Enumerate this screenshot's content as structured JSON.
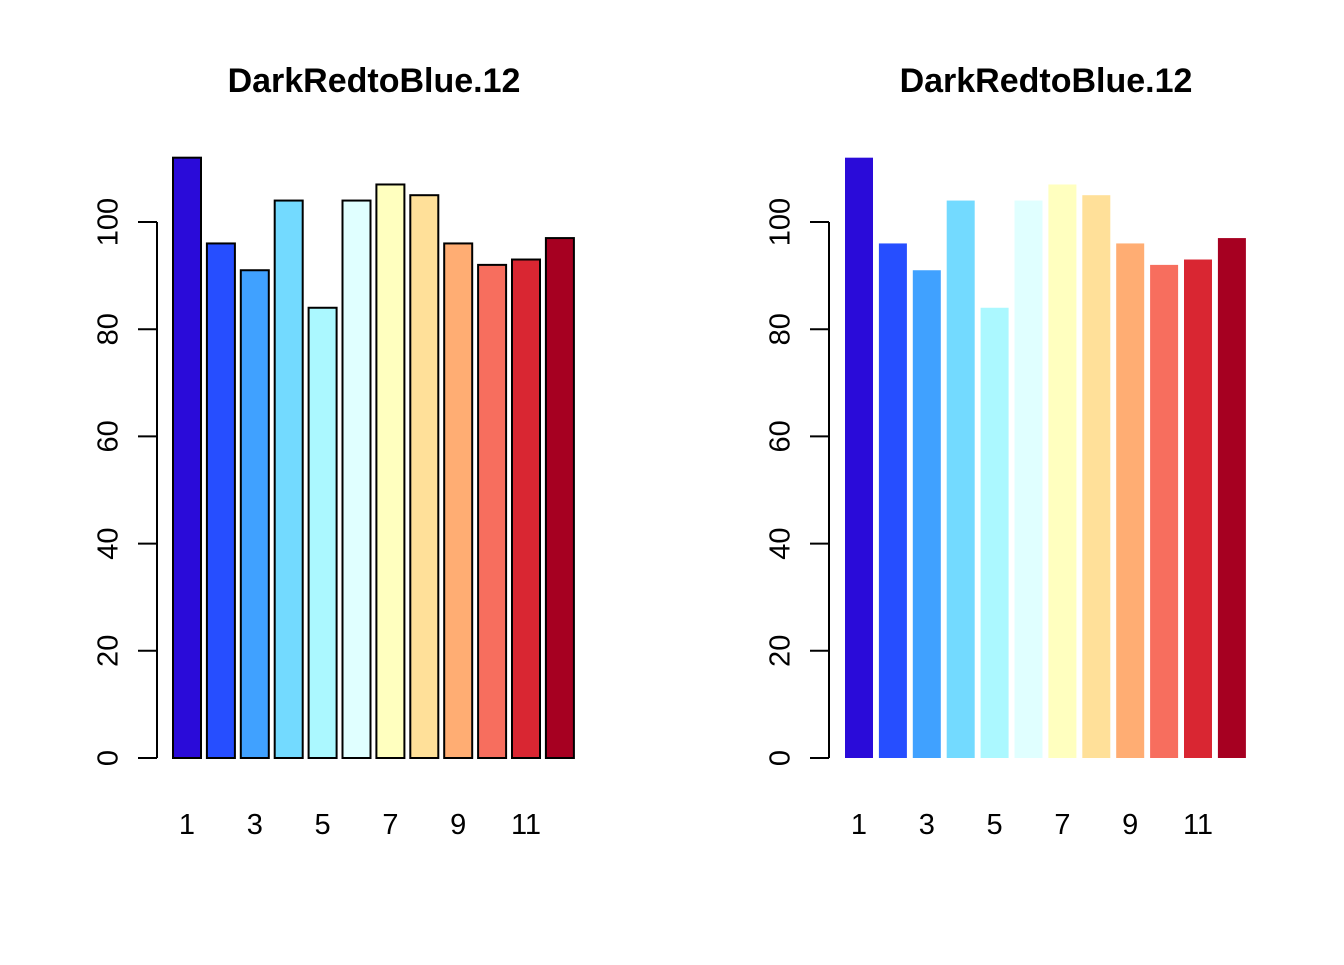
{
  "chart_data": [
    {
      "type": "bar",
      "title": "DarkRedtoBlue.12",
      "categories": [
        "1",
        "2",
        "3",
        "4",
        "5",
        "6",
        "7",
        "8",
        "9",
        "10",
        "11",
        "12"
      ],
      "values": [
        112,
        96,
        91,
        104,
        84,
        104,
        107,
        105,
        96,
        92,
        93,
        97
      ],
      "x_tick_labels": [
        "1",
        "3",
        "5",
        "7",
        "9",
        "11"
      ],
      "y_ticks": [
        0,
        20,
        40,
        60,
        80,
        100
      ],
      "ylim": [
        0,
        112
      ],
      "bar_border": true,
      "grid": false,
      "colors": [
        "#2A0BD9",
        "#264EFF",
        "#40A1FF",
        "#73DAFF",
        "#ABF8FF",
        "#E0FFFF",
        "#FFFFBF",
        "#FFE099",
        "#FFAD73",
        "#F76E5E",
        "#D92632",
        "#A60021"
      ]
    },
    {
      "type": "bar",
      "title": "DarkRedtoBlue.12",
      "categories": [
        "1",
        "2",
        "3",
        "4",
        "5",
        "6",
        "7",
        "8",
        "9",
        "10",
        "11",
        "12"
      ],
      "values": [
        112,
        96,
        91,
        104,
        84,
        104,
        107,
        105,
        96,
        92,
        93,
        97
      ],
      "x_tick_labels": [
        "1",
        "3",
        "5",
        "7",
        "9",
        "11"
      ],
      "y_ticks": [
        0,
        20,
        40,
        60,
        80,
        100
      ],
      "ylim": [
        0,
        112
      ],
      "bar_border": false,
      "grid": false,
      "colors": [
        "#2A0BD9",
        "#264EFF",
        "#40A1FF",
        "#73DAFF",
        "#ABF8FF",
        "#E0FFFF",
        "#FFFFBF",
        "#FFE099",
        "#FFAD73",
        "#F76E5E",
        "#D92632",
        "#A60021"
      ]
    }
  ]
}
